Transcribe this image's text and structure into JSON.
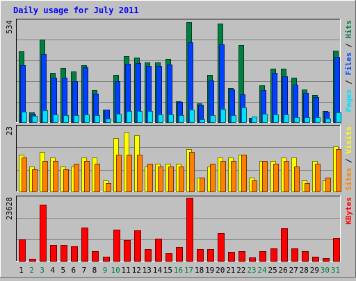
{
  "title": "Daily usage for July 2011",
  "colors": {
    "background": "#c0c0c0",
    "title": "#0000ff",
    "hits": "#008040",
    "files": "#0040ff",
    "pages": "#00e0ff",
    "visits": "#ffff00",
    "sites": "#ff8000",
    "kbytes": "#ff0000",
    "weekday": "#000000",
    "weekend": "#008040"
  },
  "chart_data": {
    "type": "bar",
    "categories": [
      "1",
      "2",
      "3",
      "4",
      "5",
      "6",
      "7",
      "8",
      "9",
      "10",
      "11",
      "12",
      "13",
      "14",
      "15",
      "16",
      "17",
      "18",
      "19",
      "20",
      "21",
      "22",
      "23",
      "24",
      "25",
      "26",
      "27",
      "28",
      "29",
      "30",
      "31"
    ],
    "weekend_days": [
      "2",
      "3",
      "9",
      "10",
      "16",
      "17",
      "23",
      "24",
      "30",
      "31"
    ],
    "panels": [
      {
        "id": "hits-files-pages",
        "ymax": 534,
        "ymax_label": "534",
        "axis_label_parts": [
          {
            "text": "Pages",
            "color": "#00e0ff"
          },
          {
            "text": " / ",
            "color": "#000000"
          },
          {
            "text": "Files",
            "color": "#0040ff"
          },
          {
            "text": " / ",
            "color": "#000000"
          },
          {
            "text": "Hits",
            "color": "#008040"
          }
        ],
        "series": [
          {
            "values": [
              374,
              50,
              435,
              258,
              284,
              268,
              299,
              169,
              67,
              247,
              349,
              340,
              315,
              315,
              332,
              108,
              526,
              100,
              248,
              521,
              180,
              407,
              22,
              195,
              282,
              280,
              235,
              172,
              143,
              60,
              378
            ]
          },
          {
            "values": [
              300,
              40,
              360,
              233,
              233,
              215,
              290,
              149,
              65,
              215,
              306,
              310,
              295,
              295,
              305,
              105,
              420,
              92,
              220,
              410,
              172,
              147,
              20,
              168,
              260,
              240,
              198,
              154,
              130,
              55,
              344
            ]
          },
          {
            "values": [
              54,
              33,
              63,
              40,
              37,
              36,
              40,
              36,
              18,
              45,
              57,
              58,
              60,
              40,
              40,
              36,
              65,
              16,
              37,
              71,
              37,
              78,
              30,
              43,
              42,
              42,
              27,
              27,
              26,
              20,
              53
            ]
          }
        ]
      },
      {
        "id": "visits-sites",
        "ymax": 23,
        "ymax_label": "23",
        "axis_label_parts": [
          {
            "text": "Sites",
            "color": "#ff8000"
          },
          {
            "text": " / ",
            "color": "#000000"
          },
          {
            "text": "Visits",
            "color": "#ffff00"
          }
        ],
        "series": [
          {
            "values": [
              13,
              9,
              14,
              12,
              9,
              9,
              12,
              12,
              4,
              19,
              21,
              20,
              9,
              10,
              10,
              10,
              15,
              5,
              9,
              12,
              12,
              13,
              5,
              11,
              11,
              12,
              12,
              4,
              11,
              4,
              16
            ]
          },
          {
            "values": [
              12,
              8,
              11,
              11,
              8,
              10,
              11,
              10,
              3,
              13,
              13,
              13,
              10,
              9,
              9,
              9,
              14,
              5,
              10,
              11,
              11,
              13,
              4,
              11,
              10,
              11,
              9,
              3,
              10,
              5,
              15
            ]
          }
        ]
      },
      {
        "id": "kbytes",
        "ymax": 23628,
        "ymax_label": "23628",
        "axis_label_parts": [
          {
            "text": "KBytes",
            "color": "#ff0000"
          }
        ],
        "series": [
          {
            "values": [
              8000,
              700,
              21100,
              5900,
              5900,
              5400,
              12500,
              3700,
              1500,
              11800,
              7700,
              11300,
              4400,
              8400,
              2800,
              5200,
              23628,
              4500,
              4500,
              10300,
              3400,
              3600,
              1300,
              3600,
              4700,
              12200,
              4700,
              3600,
              1500,
              1100,
              8500
            ]
          }
        ]
      }
    ]
  }
}
